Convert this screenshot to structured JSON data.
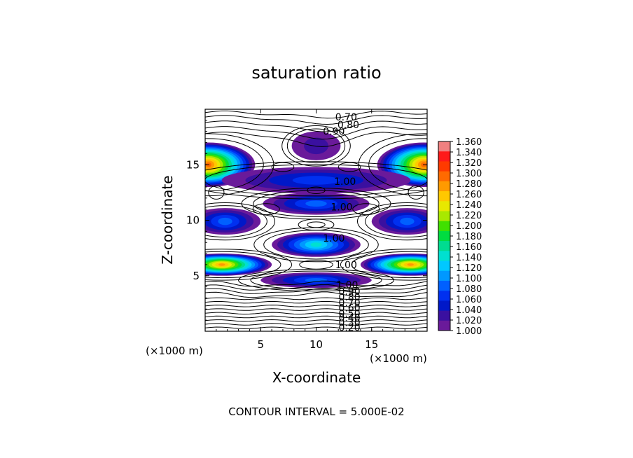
{
  "chart_data": {
    "type": "heatmap",
    "title": "saturation ratio",
    "xlabel": "X-coordinate",
    "ylabel": "Z-coordinate",
    "x_unit_label": "(×1000 m)",
    "y_unit_label": "(×1000 m)",
    "xlim": [
      0,
      20
    ],
    "ylim": [
      0,
      20
    ],
    "x_ticks": [
      "5",
      "10",
      "15"
    ],
    "y_ticks": [
      "5",
      "10",
      "15"
    ],
    "x_tick_values": [
      5,
      10,
      15
    ],
    "y_tick_values": [
      5,
      10,
      15
    ],
    "colorbar": {
      "min": 1.0,
      "max": 1.36,
      "labels": [
        "1.360",
        "1.340",
        "1.320",
        "1.300",
        "1.280",
        "1.260",
        "1.240",
        "1.220",
        "1.200",
        "1.180",
        "1.160",
        "1.140",
        "1.120",
        "1.100",
        "1.080",
        "1.060",
        "1.040",
        "1.020",
        "1.000"
      ],
      "colors": [
        "#f08080",
        "#ff1a1a",
        "#ff3a00",
        "#ff6a00",
        "#ff9a00",
        "#ffc800",
        "#e8e800",
        "#a8e800",
        "#40e000",
        "#00dc40",
        "#00dc90",
        "#00e0d0",
        "#00c8ff",
        "#0098ff",
        "#0060ff",
        "#0030f0",
        "#0018c8",
        "#3a10a0",
        "#6a1a9a"
      ]
    },
    "contour_labels": [
      {
        "text": "0.70",
        "x": 12.7,
        "z": 19.3
      },
      {
        "text": "0.80",
        "x": 12.9,
        "z": 18.6
      },
      {
        "text": "0.90",
        "x": 11.6,
        "z": 18.0
      },
      {
        "text": "1.00",
        "x": 12.6,
        "z": 13.5
      },
      {
        "text": "1.00",
        "x": 12.3,
        "z": 11.2
      },
      {
        "text": "1.00",
        "x": 11.6,
        "z": 8.4
      },
      {
        "text": "1.00",
        "x": 12.7,
        "z": 6.0
      },
      {
        "text": "1.00",
        "x": 12.8,
        "z": 4.2
      },
      {
        "text": "0.90",
        "x": 13.0,
        "z": 3.6
      },
      {
        "text": "0.80",
        "x": 13.0,
        "z": 3.1
      },
      {
        "text": "0.70",
        "x": 13.0,
        "z": 2.6
      },
      {
        "text": "0.60",
        "x": 13.0,
        "z": 2.1
      },
      {
        "text": "0.50",
        "x": 13.0,
        "z": 1.6
      },
      {
        "text": "0.40",
        "x": 13.0,
        "z": 1.2
      },
      {
        "text": "0.30",
        "x": 13.0,
        "z": 0.8
      },
      {
        "text": "0.20",
        "x": 13.0,
        "z": 0.35
      }
    ],
    "regions": [
      {
        "name": "upper-center",
        "cx": 10.0,
        "cz": 16.7,
        "rx": 2.2,
        "rz": 1.3,
        "peak": 1.04
      },
      {
        "name": "upper-left-lobe",
        "cx": 0.3,
        "cz": 15.0,
        "rx": 4.2,
        "rz": 2.0,
        "peak": 1.32
      },
      {
        "name": "upper-right-lobe",
        "cx": 19.7,
        "cz": 15.0,
        "rx": 4.2,
        "rz": 2.0,
        "peak": 1.32
      },
      {
        "name": "upper-band",
        "cx": 10.0,
        "cz": 13.6,
        "rx": 8.5,
        "rz": 1.2,
        "peak": 1.07
      },
      {
        "name": "middle-band",
        "cx": 10.0,
        "cz": 11.5,
        "rx": 4.8,
        "rz": 1.0,
        "peak": 1.1
      },
      {
        "name": "mid-left-lobe",
        "cx": 1.8,
        "cz": 9.9,
        "rx": 3.2,
        "rz": 1.2,
        "peak": 1.1
      },
      {
        "name": "mid-right-lobe",
        "cx": 18.2,
        "cz": 9.9,
        "rx": 3.2,
        "rz": 1.2,
        "peak": 1.1
      },
      {
        "name": "center-band",
        "cx": 10.0,
        "cz": 7.8,
        "rx": 4.0,
        "rz": 1.1,
        "peak": 1.16
      },
      {
        "name": "lower-left-lobe",
        "cx": 1.5,
        "cz": 6.0,
        "rx": 4.5,
        "rz": 1.0,
        "peak": 1.3
      },
      {
        "name": "lower-right-lobe",
        "cx": 18.5,
        "cz": 6.0,
        "rx": 4.5,
        "rz": 1.0,
        "peak": 1.3
      },
      {
        "name": "lower-band",
        "cx": 10.0,
        "cz": 4.6,
        "rx": 5.0,
        "rz": 0.7,
        "peak": 1.1
      }
    ]
  },
  "footer": {
    "contour_interval": "CONTOUR INTERVAL = 5.000E-02"
  }
}
